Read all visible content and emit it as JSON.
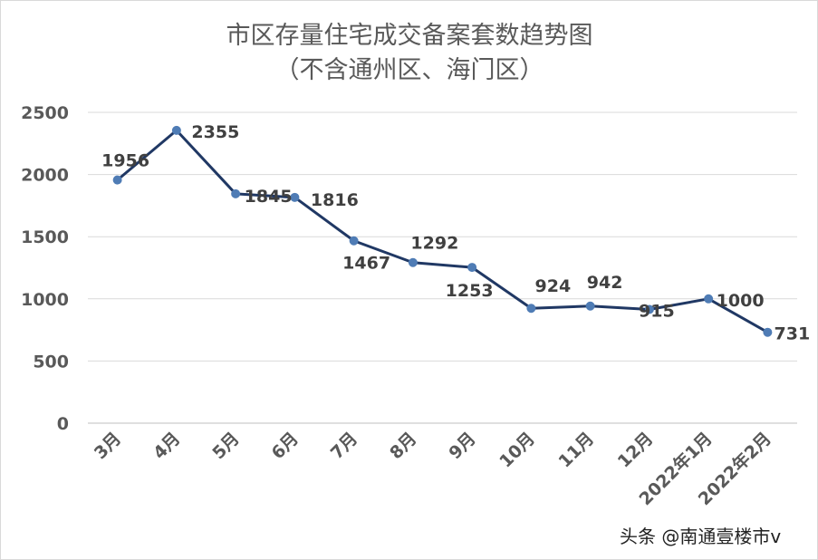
{
  "chart_data": {
    "type": "line",
    "title": "市区存量住宅成交备案套数趋势图",
    "subtitle": "（不含通州区、海门区）",
    "categories": [
      "3月",
      "4月",
      "5月",
      "6月",
      "7月",
      "8月",
      "9月",
      "10月",
      "11月",
      "12月",
      "2022年1月",
      "2022年2月"
    ],
    "series": [
      {
        "values": [
          1956,
          2355,
          1845,
          1816,
          1467,
          1292,
          1253,
          924,
          942,
          915,
          1000,
          731
        ]
      }
    ],
    "ylim": [
      0,
      2500
    ],
    "yticks": [
      0,
      500,
      1000,
      1500,
      2000,
      2500
    ],
    "grid": true,
    "legend": "none",
    "xlabel": "",
    "ylabel": "",
    "line_color": "#203864",
    "marker_color": "#4f7cb5"
  },
  "watermark": "头条 @南通壹楼市v"
}
